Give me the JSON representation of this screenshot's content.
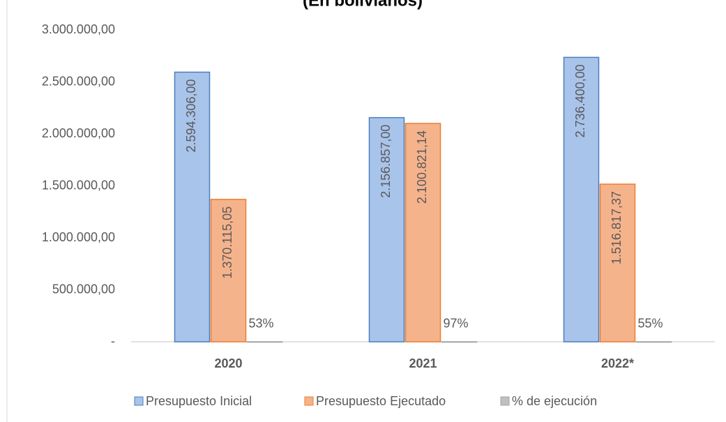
{
  "chart_data": {
    "type": "bar",
    "title": "(En bolivianos)",
    "categories": [
      "2020",
      "2021",
      "2022*"
    ],
    "series": [
      {
        "name": "Presupuesto Inicial",
        "color": "#a9c4eb",
        "border": "#4a7ebb",
        "values": [
          2594306.0,
          2156857.0,
          2736400.0
        ],
        "value_labels": [
          "2.594.306,00",
          "2.156.857,00",
          "2.736.400,00"
        ]
      },
      {
        "name": "Presupuesto Ejecutado",
        "color": "#f5b38c",
        "border": "#ed7d31",
        "values": [
          1370115.05,
          2100821.14,
          1516817.37
        ],
        "value_labels": [
          "1.370.115,05",
          "2.100.821,14",
          "1.516.817,37"
        ]
      },
      {
        "name": "% de ejecución",
        "color": "#bfbfbf",
        "border": "#a5a5a5",
        "values": [
          0.53,
          0.97,
          0.55
        ],
        "value_labels": [
          "53%",
          "97%",
          "55%"
        ]
      }
    ],
    "ylim": [
      0,
      3000000
    ],
    "yticks": [
      {
        "value": 0,
        "label": "-"
      },
      {
        "value": 500000,
        "label": "500.000,00"
      },
      {
        "value": 1000000,
        "label": "1.000.000,00"
      },
      {
        "value": 1500000,
        "label": "1.500.000,00"
      },
      {
        "value": 2000000,
        "label": "2.000.000,00"
      },
      {
        "value": 2500000,
        "label": "2.500.000,00"
      },
      {
        "value": 3000000,
        "label": "3.000.000,00"
      }
    ],
    "grid": false,
    "legend": "bottom"
  }
}
